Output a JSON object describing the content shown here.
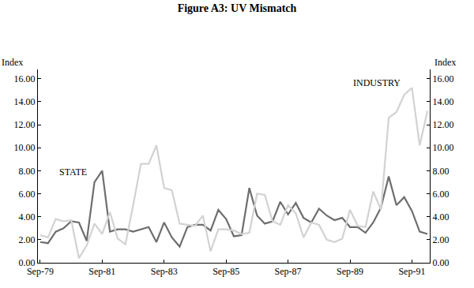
{
  "chart_data": {
    "type": "line",
    "title": "Figure A3: UV Mismatch",
    "ylabel": "Index",
    "y2label": "Index",
    "categories": [
      "Sep-79",
      null,
      null,
      null,
      null,
      null,
      null,
      null,
      "Sep-81",
      null,
      null,
      null,
      null,
      null,
      null,
      null,
      "Sep-83",
      null,
      null,
      null,
      null,
      null,
      null,
      null,
      "Sep-85",
      null,
      null,
      null,
      null,
      null,
      null,
      null,
      "Sep-87",
      null,
      null,
      null,
      null,
      null,
      null,
      null,
      "Sep-89",
      null,
      null,
      null,
      null,
      null,
      null,
      null,
      "Sep-91",
      null,
      null
    ],
    "series": [
      {
        "name": "STATE",
        "color": "#6e6e6e",
        "values": [
          1.8,
          1.7,
          2.7,
          3.0,
          3.6,
          3.5,
          1.9,
          7.0,
          8.0,
          2.7,
          2.9,
          2.9,
          2.7,
          2.9,
          3.1,
          1.8,
          3.5,
          2.2,
          1.4,
          3.1,
          3.3,
          3.3,
          2.8,
          4.6,
          3.8,
          2.3,
          2.4,
          6.5,
          4.1,
          3.4,
          3.6,
          5.3,
          4.2,
          5.2,
          3.9,
          3.5,
          4.7,
          4.1,
          3.7,
          3.9,
          3.1,
          3.1,
          2.6,
          3.5,
          4.8,
          7.5,
          5.0,
          5.7,
          4.5,
          2.7,
          2.5
        ]
      },
      {
        "name": "INDUSTRY",
        "color": "#d2d2d2",
        "values": [
          2.4,
          2.2,
          3.8,
          3.6,
          3.7,
          0.4,
          1.5,
          3.4,
          2.5,
          4.4,
          2.1,
          1.6,
          5.0,
          8.6,
          8.6,
          10.2,
          6.5,
          6.3,
          3.4,
          3.3,
          3.2,
          4.1,
          1.0,
          2.9,
          2.9,
          2.8,
          2.5,
          2.6,
          6.0,
          5.9,
          3.6,
          3.3,
          5.0,
          4.3,
          2.2,
          3.5,
          3.3,
          2.0,
          1.8,
          2.1,
          4.6,
          3.2,
          3.1,
          6.2,
          4.6,
          12.6,
          13.1,
          14.6,
          15.2,
          10.2,
          13.2
        ]
      }
    ],
    "ylim": [
      0,
      16.8
    ],
    "yticks": [
      {
        "value": 0,
        "label": "0.00"
      },
      {
        "value": 2,
        "label": "2.00"
      },
      {
        "value": 4,
        "label": "4.00"
      },
      {
        "value": 6,
        "label": "6.00"
      },
      {
        "value": 8,
        "label": "8.00"
      },
      {
        "value": 10,
        "label": "10.00"
      },
      {
        "value": 12,
        "label": "12.00"
      },
      {
        "value": 14,
        "label": "14.00"
      },
      {
        "value": 16,
        "label": "16.00"
      }
    ],
    "y2lim": [
      0,
      16.8
    ],
    "y2ticks": [
      {
        "value": 0,
        "label": "0.00"
      },
      {
        "value": 2,
        "label": "2.00"
      },
      {
        "value": 4,
        "label": "4.00"
      },
      {
        "value": 6,
        "label": "6.00"
      },
      {
        "value": 8,
        "label": "8.00"
      },
      {
        "value": 10,
        "label": "10.00"
      },
      {
        "value": 12,
        "label": "12.00"
      },
      {
        "value": 14,
        "label": "14.00"
      },
      {
        "value": 16,
        "label": "16.00"
      }
    ],
    "grid": false
  }
}
